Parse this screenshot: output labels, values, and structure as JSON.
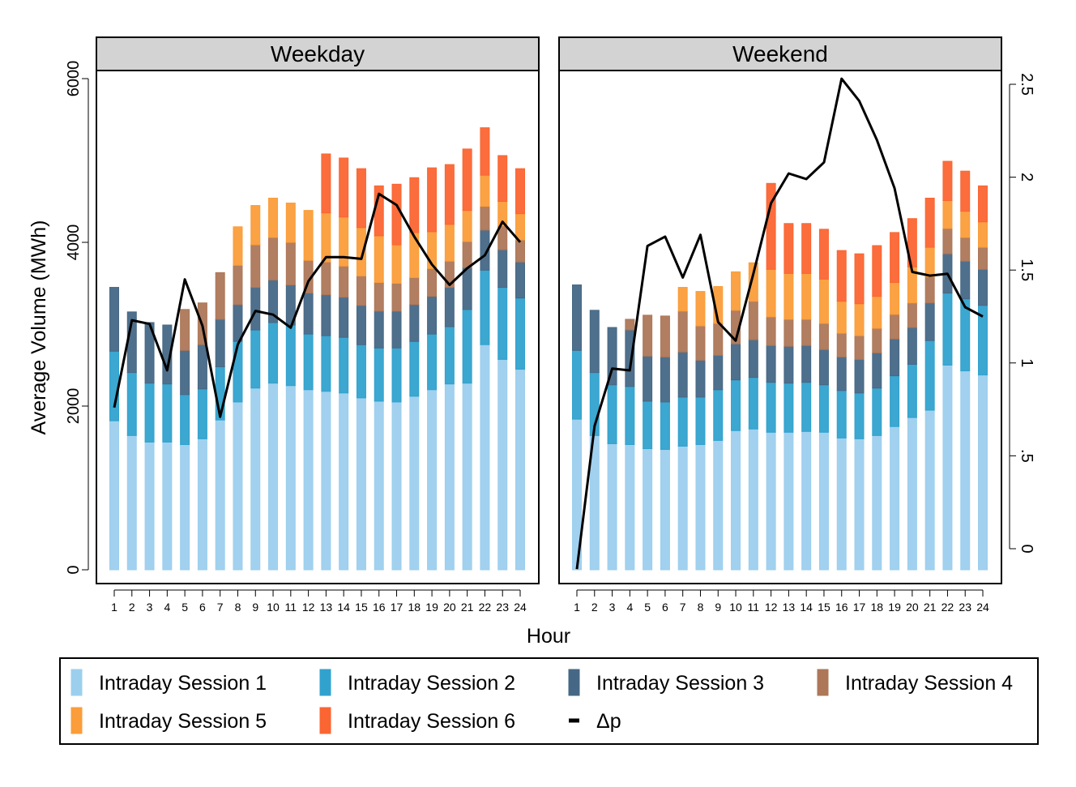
{
  "chart_data": {
    "type": "bar",
    "subtype": "stacked-bar-with-line",
    "ylabel": "Average Volume (MWh)",
    "xlabel": "Hour",
    "ylim": [
      0,
      6200
    ],
    "yticks": [
      "0",
      "2000",
      "4000",
      "6000"
    ],
    "ylim_right": [
      -0.11,
      2.66
    ],
    "yticks_right": [
      {
        "value": 0,
        "label": "0"
      },
      {
        "value": 0.5,
        "label": ".5"
      },
      {
        "value": 1,
        "label": "1"
      },
      {
        "value": 1.5,
        "label": "1.5"
      },
      {
        "value": 2,
        "label": "2"
      },
      {
        "value": 2.5,
        "label": "2.5"
      }
    ],
    "categories": [
      "1",
      "2",
      "3",
      "4",
      "5",
      "6",
      "7",
      "8",
      "9",
      "10",
      "11",
      "12",
      "13",
      "14",
      "15",
      "16",
      "17",
      "18",
      "19",
      "20",
      "21",
      "22",
      "23",
      "24"
    ],
    "legend": [
      {
        "name": "Intraday Session 1",
        "color": "#9ccfee",
        "kind": "bar"
      },
      {
        "name": "Intraday Session 2",
        "color": "#31a2ce",
        "kind": "bar"
      },
      {
        "name": "Intraday Session 3",
        "color": "#466886",
        "kind": "bar"
      },
      {
        "name": "Intraday Session 4",
        "color": "#ad7758",
        "kind": "bar"
      },
      {
        "name": "Intraday Session 5",
        "color": "#fb9d3a",
        "kind": "bar"
      },
      {
        "name": "Intraday Session 6",
        "color": "#fb6532",
        "kind": "bar"
      },
      {
        "name": "Δp",
        "color": "#000000",
        "kind": "line"
      }
    ],
    "panels": [
      {
        "title": "Weekday",
        "series": [
          {
            "name": "Intraday Session 1",
            "values": [
              1820,
              1640,
              1560,
              1560,
              1530,
              1600,
              1830,
              2050,
              2220,
              2280,
              2250,
              2200,
              2180,
              2160,
              2100,
              2060,
              2050,
              2120,
              2200,
              2270,
              2280,
              2750,
              2570,
              2450
            ]
          },
          {
            "name": "Intraday Session 2",
            "values": [
              850,
              770,
              720,
              710,
              610,
              610,
              650,
              740,
              710,
              740,
              740,
              680,
              680,
              680,
              650,
              650,
              660,
              670,
              680,
              700,
              900,
              910,
              880,
              870
            ]
          },
          {
            "name": "Intraday Session 3",
            "values": [
              780,
              740,
              740,
              720,
              540,
              540,
              580,
              450,
              520,
              520,
              490,
              500,
              500,
              490,
              480,
              450,
              450,
              450,
              460,
              480,
              510,
              490,
              460,
              440
            ]
          },
          {
            "name": "Intraday Session 4",
            "values": [
              0,
              0,
              0,
              0,
              500,
              510,
              570,
              480,
              520,
              520,
              520,
              400,
              400,
              380,
              360,
              350,
              340,
              330,
              340,
              320,
              320,
              290,
              290,
              270
            ]
          },
          {
            "name": "Intraday Session 5",
            "values": [
              0,
              0,
              0,
              0,
              0,
              0,
              0,
              470,
              480,
              480,
              480,
              610,
              600,
              600,
              590,
              570,
              470,
              550,
              450,
              450,
              380,
              380,
              300,
              320
            ]
          },
          {
            "name": "Intraday Session 6",
            "values": [
              0,
              0,
              0,
              0,
              0,
              0,
              0,
              0,
              0,
              0,
              0,
              0,
              720,
              720,
              720,
              610,
              740,
              670,
              780,
              730,
              750,
              580,
              560,
              550
            ]
          }
        ],
        "delta_p": [
          0.76,
          1.23,
          1.21,
          0.96,
          1.45,
          1.2,
          0.71,
          1.1,
          1.28,
          1.26,
          1.19,
          1.44,
          1.57,
          1.57,
          1.56,
          1.91,
          1.85,
          1.68,
          1.53,
          1.42,
          1.51,
          1.58,
          1.76,
          1.65
        ]
      },
      {
        "title": "Weekend",
        "series": [
          {
            "name": "Intraday Session 1",
            "values": [
              1840,
              1640,
              1540,
              1530,
              1480,
              1470,
              1510,
              1530,
              1580,
              1700,
              1720,
              1680,
              1680,
              1690,
              1680,
              1610,
              1600,
              1640,
              1750,
              1860,
              1950,
              2500,
              2430,
              2380
            ]
          },
          {
            "name": "Intraday Session 2",
            "values": [
              840,
              770,
              720,
              710,
              580,
              580,
              600,
              580,
              620,
              620,
              630,
              610,
              600,
              600,
              580,
              580,
              560,
              580,
              620,
              650,
              850,
              880,
              880,
              850
            ]
          },
          {
            "name": "Intraday Session 3",
            "values": [
              800,
              760,
              700,
              690,
              550,
              550,
              550,
              450,
              420,
              440,
              460,
              450,
              450,
              450,
              430,
              410,
              410,
              430,
              450,
              450,
              460,
              480,
              460,
              440
            ]
          },
          {
            "name": "Intraday Session 4",
            "values": [
              0,
              0,
              0,
              130,
              500,
              500,
              500,
              420,
              390,
              410,
              470,
              350,
              330,
              320,
              320,
              290,
              290,
              300,
              300,
              300,
              320,
              310,
              290,
              270
            ]
          },
          {
            "name": "Intraday Session 5",
            "values": [
              0,
              0,
              0,
              0,
              0,
              0,
              290,
              420,
              450,
              470,
              470,
              580,
              560,
              560,
              540,
              390,
              390,
              390,
              390,
              440,
              360,
              340,
              320,
              310
            ]
          },
          {
            "name": "Intraday Session 6",
            "values": [
              0,
              0,
              0,
              0,
              0,
              0,
              0,
              0,
              0,
              0,
              0,
              1050,
              610,
              610,
              610,
              620,
              610,
              620,
              610,
              590,
              600,
              480,
              490,
              440
            ]
          }
        ],
        "delta_p": [
          -0.11,
          0.66,
          0.97,
          0.96,
          1.63,
          1.68,
          1.46,
          1.69,
          1.22,
          1.12,
          1.48,
          1.86,
          2.02,
          1.99,
          2.08,
          2.53,
          2.41,
          2.2,
          1.94,
          1.49,
          1.47,
          1.48,
          1.3,
          1.25
        ]
      }
    ]
  }
}
